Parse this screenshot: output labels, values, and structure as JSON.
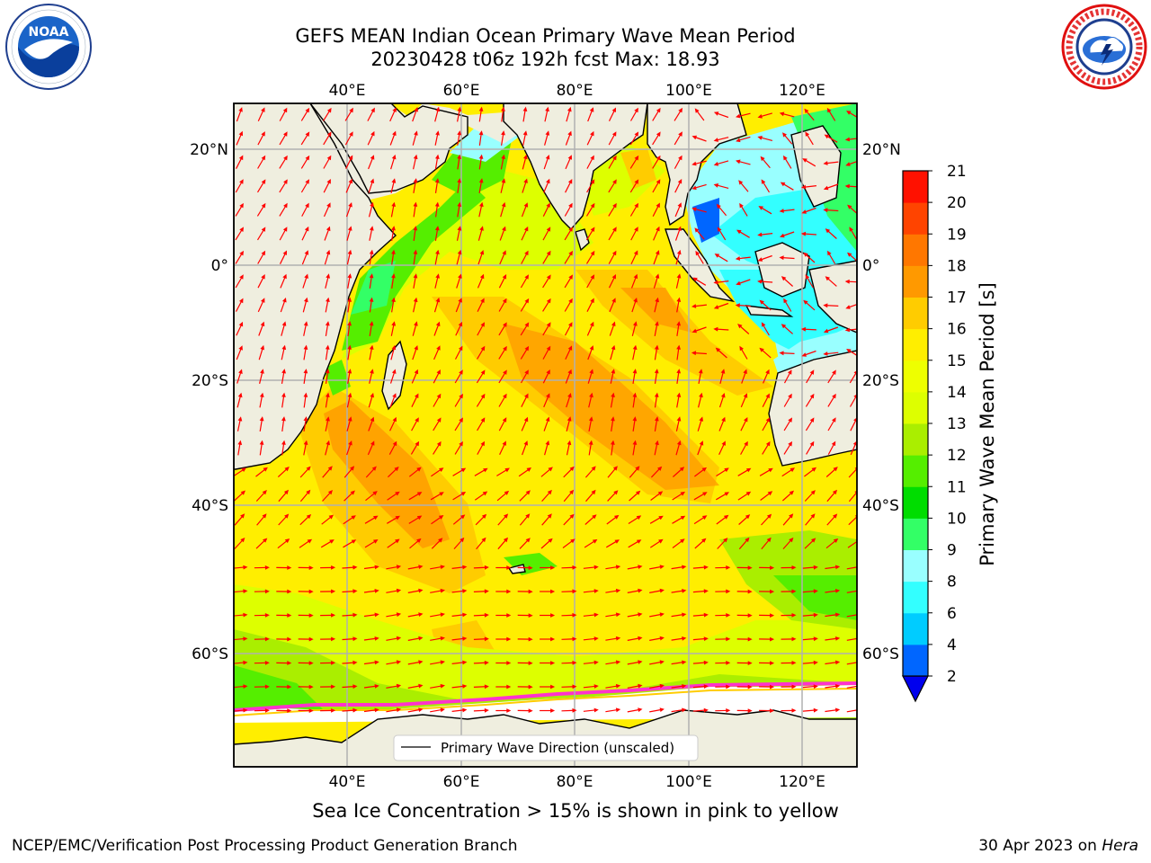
{
  "header": {
    "title_line1": "GEFS MEAN Indian Ocean Primary Wave Mean Period",
    "title_line2": "20230428 t06z 192h fcst   Max: 18.93"
  },
  "logos": {
    "left": {
      "name": "noaa-logo",
      "text": "NOAA",
      "ring_text": "NATIONAL OCEANIC AND ATMOSPHERIC ADMINISTRATION · U.S. DEPARTMENT OF COMMERCE"
    },
    "right": {
      "name": "nws-logo",
      "ring_text": "NATIONAL WEATHER SERVICE"
    }
  },
  "map": {
    "lon_labels": [
      "40°E",
      "60°E",
      "80°E",
      "100°E",
      "120°E"
    ],
    "lat_labels": [
      "20°N",
      "0°",
      "20°S",
      "40°S",
      "60°S"
    ],
    "legend_label": "Primary Wave Direction (unscaled)",
    "arrow_color": "#ff0000",
    "land_color": "#efeedf",
    "ice_color": "#ffffff"
  },
  "colorbar": {
    "label": "Primary Wave Mean Period [s]",
    "ticks": [
      "2",
      "4",
      "6",
      "8",
      "9",
      "10",
      "11",
      "12",
      "13",
      "14",
      "15",
      "16",
      "17",
      "18",
      "19",
      "20",
      "21"
    ],
    "colors": [
      "#0066ff",
      "#00ccff",
      "#33ffff",
      "#99ffff",
      "#33ff66",
      "#00dd00",
      "#55ee00",
      "#aaee00",
      "#ddff00",
      "#eeff00",
      "#ffee00",
      "#ffcc00",
      "#ff9900",
      "#ff7700",
      "#ff4400",
      "#ff1100"
    ],
    "extend_color": "#0000ee"
  },
  "subtitle": "Sea Ice Concentration > 15% is shown in pink to yellow",
  "footer": {
    "left": "NCEP/EMC/Verification Post Processing Product Generation Branch",
    "right_date": "30 Apr 2023 on ",
    "right_host": "Hera"
  }
}
